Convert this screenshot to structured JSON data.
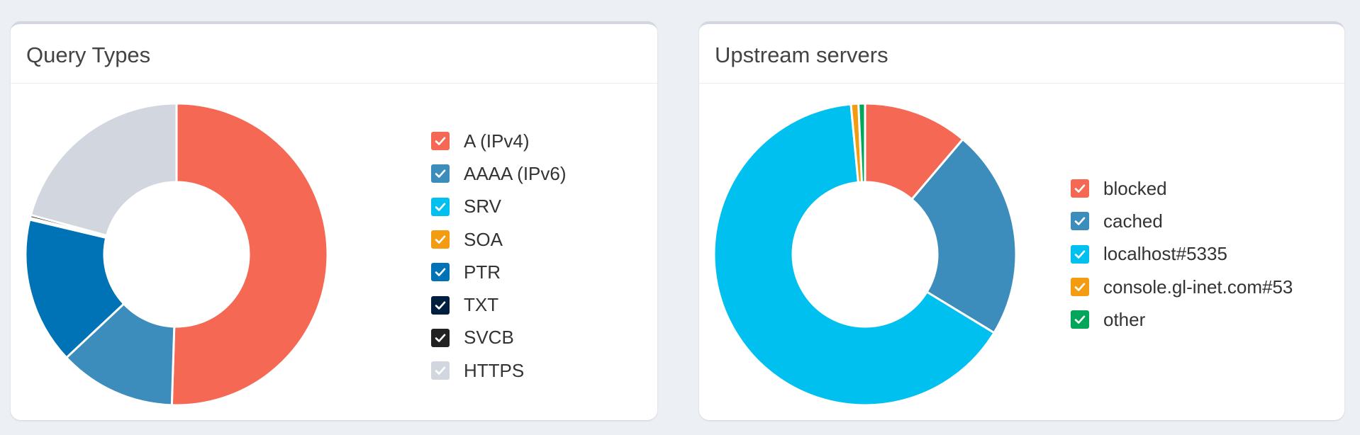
{
  "query_types": {
    "title": "Query Types",
    "chart_data": {
      "type": "pie",
      "title": "Query Types",
      "categories": [
        "A (IPv4)",
        "AAAA (IPv6)",
        "SRV",
        "SOA",
        "PTR",
        "TXT",
        "SVCB",
        "HTTPS"
      ],
      "values": [
        50.5,
        12.5,
        0,
        0,
        15.7,
        0.2,
        0.3,
        20.8
      ],
      "colors": [
        "#f56954",
        "#3c8dbc",
        "#00c0ef",
        "#f39c12",
        "#0073b7",
        "#001f3f",
        "#222222",
        "#d2d6de"
      ]
    }
  },
  "upstream_servers": {
    "title": "Upstream servers",
    "chart_data": {
      "type": "pie",
      "title": "Upstream servers",
      "categories": [
        "blocked",
        "cached",
        "localhost#5335",
        "console.gl-inet.com#53",
        "other"
      ],
      "values": [
        11.2,
        22.5,
        64.8,
        0.8,
        0.7
      ],
      "colors": [
        "#f56954",
        "#3c8dbc",
        "#00c0ef",
        "#f39c12",
        "#00a65a"
      ]
    }
  }
}
